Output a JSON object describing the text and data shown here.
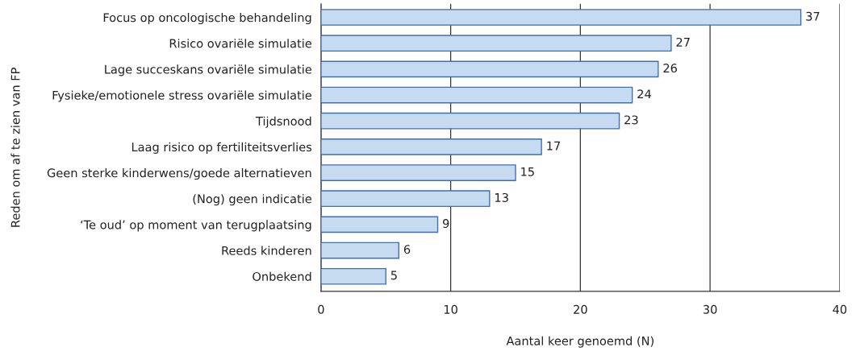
{
  "chart_data": {
    "type": "bar",
    "orientation": "horizontal",
    "xlabel": "Aantal keer genoemd (N)",
    "ylabel": "Reden om af te zien van FP",
    "categories": [
      "Focus op oncologische behandeling",
      "Risico ovariële simulatie",
      "Lage succeskans ovariële simulatie",
      "Fysieke/emotionele stress ovariële simulatie",
      "Tijdsnood",
      "Laag risico op fertiliteitsverlies",
      "Geen sterke kinderwens/goede alternatieven",
      "(Nog) geen indicatie",
      "‘Te oud’ op moment van terugplaatsing",
      "Reeds kinderen",
      "Onbekend"
    ],
    "values": [
      37,
      27,
      26,
      24,
      23,
      17,
      15,
      13,
      9,
      6,
      5
    ],
    "color": "#c6dbef",
    "xlim": [
      0,
      40
    ],
    "xticks": [
      0,
      10,
      20,
      30,
      40
    ],
    "grid": "x",
    "data_labels": true
  }
}
